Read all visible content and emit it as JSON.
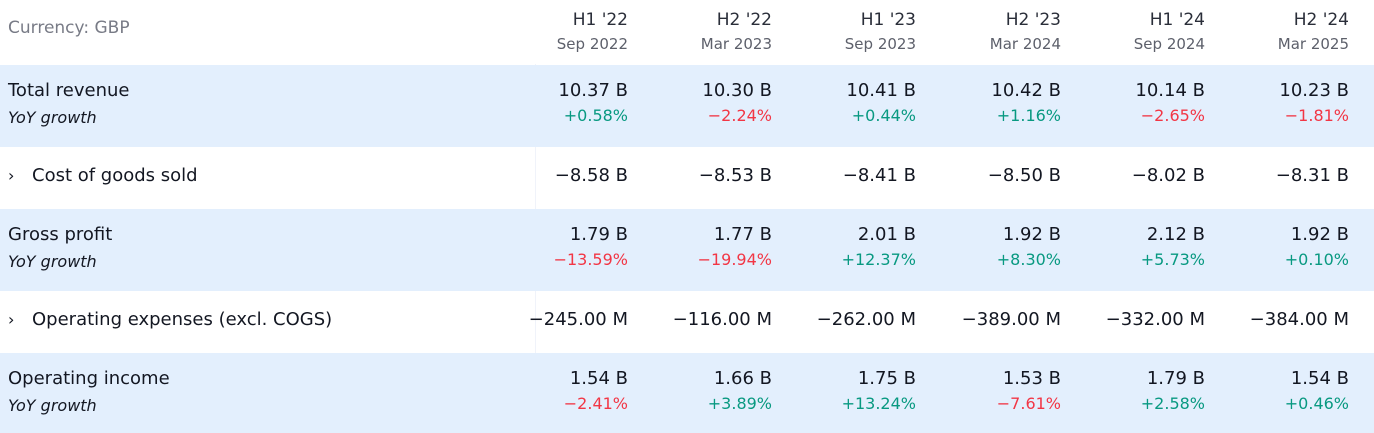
{
  "currency_label": "Currency: GBP",
  "columns": [
    {
      "period": "H1 '22",
      "date": "Sep 2022"
    },
    {
      "period": "H2 '22",
      "date": "Mar 2023"
    },
    {
      "period": "H1 '23",
      "date": "Sep 2023"
    },
    {
      "period": "H2 '23",
      "date": "Mar 2024"
    },
    {
      "period": "H1 '24",
      "date": "Sep 2024"
    },
    {
      "period": "H2 '24",
      "date": "Mar 2025"
    }
  ],
  "rows": {
    "total_revenue": {
      "label": "Total revenue",
      "sub_label": "YoY growth",
      "values": [
        "10.37 B",
        "10.30 B",
        "10.41 B",
        "10.42 B",
        "10.14 B",
        "10.23 B"
      ],
      "yoy": [
        "+0.58%",
        "−2.24%",
        "+0.44%",
        "+1.16%",
        "−2.65%",
        "−1.81%"
      ]
    },
    "cogs": {
      "chevron": "›",
      "label": "Cost of goods sold",
      "values": [
        "−8.58 B",
        "−8.53 B",
        "−8.41 B",
        "−8.50 B",
        "−8.02 B",
        "−8.31 B"
      ]
    },
    "gross_profit": {
      "label": "Gross profit",
      "sub_label": "YoY growth",
      "values": [
        "1.79 B",
        "1.77 B",
        "2.01 B",
        "1.92 B",
        "2.12 B",
        "1.92 B"
      ],
      "yoy": [
        "−13.59%",
        "−19.94%",
        "+12.37%",
        "+8.30%",
        "+5.73%",
        "+0.10%"
      ]
    },
    "opex": {
      "chevron": "›",
      "label": "Operating expenses (excl. COGS)",
      "values": [
        "−245.00 M",
        "−116.00 M",
        "−262.00 M",
        "−389.00 M",
        "−332.00 M",
        "−384.00 M"
      ]
    },
    "operating_income": {
      "label": "Operating income",
      "sub_label": "YoY growth",
      "values": [
        "1.54 B",
        "1.66 B",
        "1.75 B",
        "1.53 B",
        "1.79 B",
        "1.54 B"
      ],
      "yoy": [
        "−2.41%",
        "+3.89%",
        "+13.24%",
        "−7.61%",
        "+2.58%",
        "+0.46%"
      ]
    }
  },
  "colors": {
    "positive": "#089981",
    "negative": "#f23645",
    "row_highlight": "#e3effd"
  }
}
